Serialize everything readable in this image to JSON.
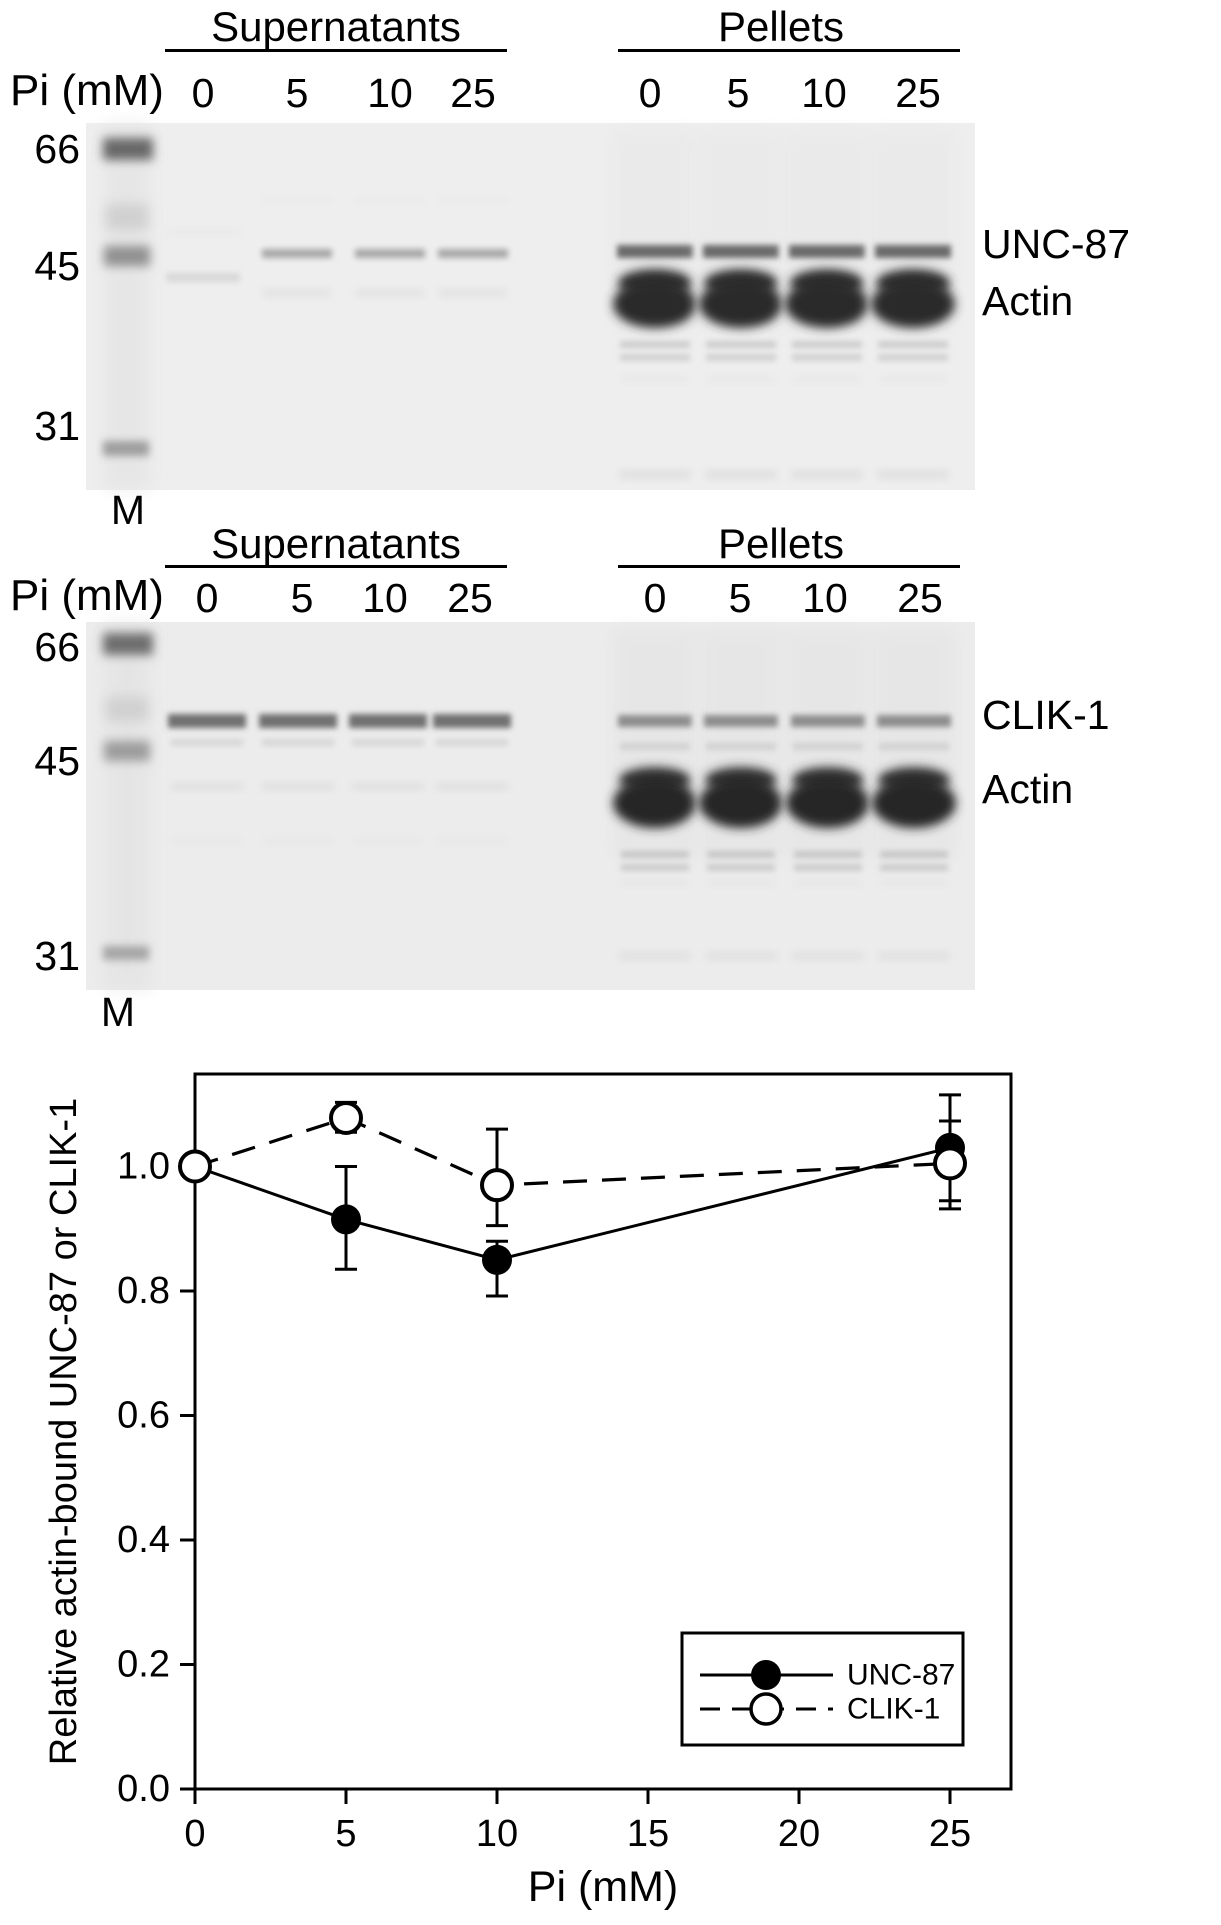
{
  "figure": {
    "panels": [
      {
        "group_labels": [
          "Supernatants",
          "Pellets"
        ],
        "pi_label": "Pi (mM)",
        "lanes": [
          "0",
          "5",
          "10",
          "25",
          "0",
          "5",
          "10",
          "25"
        ],
        "mw": [
          "66",
          "45",
          "31"
        ],
        "marker_label": "M",
        "band_labels": [
          "UNC-87",
          "Actin"
        ]
      },
      {
        "group_labels": [
          "Supernatants",
          "Pellets"
        ],
        "pi_label": "Pi (mM)",
        "lanes": [
          "0",
          "5",
          "10",
          "25",
          "0",
          "5",
          "10",
          "25"
        ],
        "mw": [
          "66",
          "45",
          "31"
        ],
        "marker_label": "M",
        "band_labels": [
          "CLIK-1",
          "Actin"
        ]
      }
    ]
  },
  "chart_data": {
    "type": "line",
    "x": [
      0,
      5,
      10,
      25
    ],
    "series": [
      {
        "name": "UNC-87",
        "marker": "filled-circle",
        "line": "solid",
        "values": [
          1.0,
          0.915,
          0.85,
          1.03
        ],
        "err_up": [
          0,
          0.085,
          0.03,
          0.085
        ],
        "err_down": [
          0,
          0.08,
          0.058,
          0.085
        ]
      },
      {
        "name": "CLIK-1",
        "marker": "open-circle",
        "line": "dashed",
        "values": [
          1.0,
          1.078,
          0.97,
          1.005
        ],
        "err_up": [
          0,
          0.025,
          0.09,
          0.068
        ],
        "err_down": [
          0,
          0.023,
          0.065,
          0.073
        ]
      }
    ],
    "xlabel": "Pi (mM)",
    "ylabel": "Relative actin-bound UNC-87 or CLIK-1",
    "xticks": [
      "0",
      "5",
      "10",
      "15",
      "20",
      "25"
    ],
    "yticks": [
      "0.0",
      "0.2",
      "0.4",
      "0.6",
      "0.8",
      "1.0"
    ],
    "xlim": [
      0,
      27
    ],
    "ylim": [
      0,
      1.15
    ],
    "legend_position": "lower-right"
  }
}
